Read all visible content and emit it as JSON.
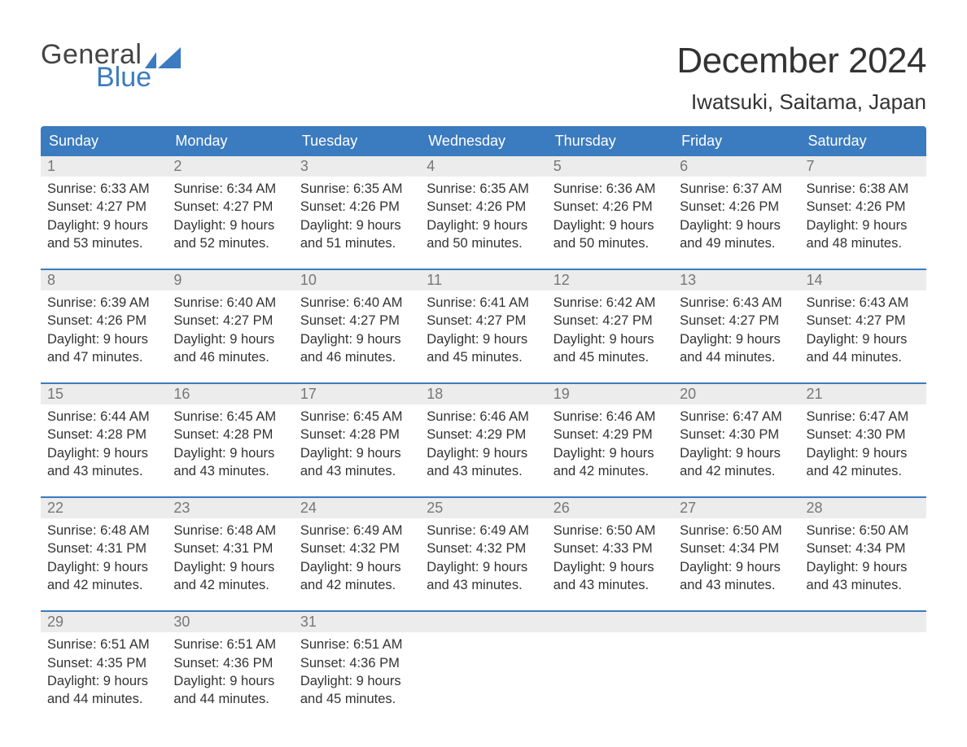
{
  "brand": {
    "word1": "General",
    "word2": "Blue"
  },
  "colors": {
    "brand_blue": "#3b7bbf",
    "header_bg": "#3b7bbf",
    "row_alt": "#ececec",
    "text": "#333333",
    "muted": "#777777"
  },
  "title": "December 2024",
  "location": "Iwatsuki, Saitama, Japan",
  "day_headers": [
    "Sunday",
    "Monday",
    "Tuesday",
    "Wednesday",
    "Thursday",
    "Friday",
    "Saturday"
  ],
  "weeks": [
    [
      {
        "n": "1",
        "sunrise": "Sunrise: 6:33 AM",
        "sunset": "Sunset: 4:27 PM",
        "d1": "Daylight: 9 hours",
        "d2": "and 53 minutes."
      },
      {
        "n": "2",
        "sunrise": "Sunrise: 6:34 AM",
        "sunset": "Sunset: 4:27 PM",
        "d1": "Daylight: 9 hours",
        "d2": "and 52 minutes."
      },
      {
        "n": "3",
        "sunrise": "Sunrise: 6:35 AM",
        "sunset": "Sunset: 4:26 PM",
        "d1": "Daylight: 9 hours",
        "d2": "and 51 minutes."
      },
      {
        "n": "4",
        "sunrise": "Sunrise: 6:35 AM",
        "sunset": "Sunset: 4:26 PM",
        "d1": "Daylight: 9 hours",
        "d2": "and 50 minutes."
      },
      {
        "n": "5",
        "sunrise": "Sunrise: 6:36 AM",
        "sunset": "Sunset: 4:26 PM",
        "d1": "Daylight: 9 hours",
        "d2": "and 50 minutes."
      },
      {
        "n": "6",
        "sunrise": "Sunrise: 6:37 AM",
        "sunset": "Sunset: 4:26 PM",
        "d1": "Daylight: 9 hours",
        "d2": "and 49 minutes."
      },
      {
        "n": "7",
        "sunrise": "Sunrise: 6:38 AM",
        "sunset": "Sunset: 4:26 PM",
        "d1": "Daylight: 9 hours",
        "d2": "and 48 minutes."
      }
    ],
    [
      {
        "n": "8",
        "sunrise": "Sunrise: 6:39 AM",
        "sunset": "Sunset: 4:26 PM",
        "d1": "Daylight: 9 hours",
        "d2": "and 47 minutes."
      },
      {
        "n": "9",
        "sunrise": "Sunrise: 6:40 AM",
        "sunset": "Sunset: 4:27 PM",
        "d1": "Daylight: 9 hours",
        "d2": "and 46 minutes."
      },
      {
        "n": "10",
        "sunrise": "Sunrise: 6:40 AM",
        "sunset": "Sunset: 4:27 PM",
        "d1": "Daylight: 9 hours",
        "d2": "and 46 minutes."
      },
      {
        "n": "11",
        "sunrise": "Sunrise: 6:41 AM",
        "sunset": "Sunset: 4:27 PM",
        "d1": "Daylight: 9 hours",
        "d2": "and 45 minutes."
      },
      {
        "n": "12",
        "sunrise": "Sunrise: 6:42 AM",
        "sunset": "Sunset: 4:27 PM",
        "d1": "Daylight: 9 hours",
        "d2": "and 45 minutes."
      },
      {
        "n": "13",
        "sunrise": "Sunrise: 6:43 AM",
        "sunset": "Sunset: 4:27 PM",
        "d1": "Daylight: 9 hours",
        "d2": "and 44 minutes."
      },
      {
        "n": "14",
        "sunrise": "Sunrise: 6:43 AM",
        "sunset": "Sunset: 4:27 PM",
        "d1": "Daylight: 9 hours",
        "d2": "and 44 minutes."
      }
    ],
    [
      {
        "n": "15",
        "sunrise": "Sunrise: 6:44 AM",
        "sunset": "Sunset: 4:28 PM",
        "d1": "Daylight: 9 hours",
        "d2": "and 43 minutes."
      },
      {
        "n": "16",
        "sunrise": "Sunrise: 6:45 AM",
        "sunset": "Sunset: 4:28 PM",
        "d1": "Daylight: 9 hours",
        "d2": "and 43 minutes."
      },
      {
        "n": "17",
        "sunrise": "Sunrise: 6:45 AM",
        "sunset": "Sunset: 4:28 PM",
        "d1": "Daylight: 9 hours",
        "d2": "and 43 minutes."
      },
      {
        "n": "18",
        "sunrise": "Sunrise: 6:46 AM",
        "sunset": "Sunset: 4:29 PM",
        "d1": "Daylight: 9 hours",
        "d2": "and 43 minutes."
      },
      {
        "n": "19",
        "sunrise": "Sunrise: 6:46 AM",
        "sunset": "Sunset: 4:29 PM",
        "d1": "Daylight: 9 hours",
        "d2": "and 42 minutes."
      },
      {
        "n": "20",
        "sunrise": "Sunrise: 6:47 AM",
        "sunset": "Sunset: 4:30 PM",
        "d1": "Daylight: 9 hours",
        "d2": "and 42 minutes."
      },
      {
        "n": "21",
        "sunrise": "Sunrise: 6:47 AM",
        "sunset": "Sunset: 4:30 PM",
        "d1": "Daylight: 9 hours",
        "d2": "and 42 minutes."
      }
    ],
    [
      {
        "n": "22",
        "sunrise": "Sunrise: 6:48 AM",
        "sunset": "Sunset: 4:31 PM",
        "d1": "Daylight: 9 hours",
        "d2": "and 42 minutes."
      },
      {
        "n": "23",
        "sunrise": "Sunrise: 6:48 AM",
        "sunset": "Sunset: 4:31 PM",
        "d1": "Daylight: 9 hours",
        "d2": "and 42 minutes."
      },
      {
        "n": "24",
        "sunrise": "Sunrise: 6:49 AM",
        "sunset": "Sunset: 4:32 PM",
        "d1": "Daylight: 9 hours",
        "d2": "and 42 minutes."
      },
      {
        "n": "25",
        "sunrise": "Sunrise: 6:49 AM",
        "sunset": "Sunset: 4:32 PM",
        "d1": "Daylight: 9 hours",
        "d2": "and 43 minutes."
      },
      {
        "n": "26",
        "sunrise": "Sunrise: 6:50 AM",
        "sunset": "Sunset: 4:33 PM",
        "d1": "Daylight: 9 hours",
        "d2": "and 43 minutes."
      },
      {
        "n": "27",
        "sunrise": "Sunrise: 6:50 AM",
        "sunset": "Sunset: 4:34 PM",
        "d1": "Daylight: 9 hours",
        "d2": "and 43 minutes."
      },
      {
        "n": "28",
        "sunrise": "Sunrise: 6:50 AM",
        "sunset": "Sunset: 4:34 PM",
        "d1": "Daylight: 9 hours",
        "d2": "and 43 minutes."
      }
    ],
    [
      {
        "n": "29",
        "sunrise": "Sunrise: 6:51 AM",
        "sunset": "Sunset: 4:35 PM",
        "d1": "Daylight: 9 hours",
        "d2": "and 44 minutes."
      },
      {
        "n": "30",
        "sunrise": "Sunrise: 6:51 AM",
        "sunset": "Sunset: 4:36 PM",
        "d1": "Daylight: 9 hours",
        "d2": "and 44 minutes."
      },
      {
        "n": "31",
        "sunrise": "Sunrise: 6:51 AM",
        "sunset": "Sunset: 4:36 PM",
        "d1": "Daylight: 9 hours",
        "d2": "and 45 minutes."
      },
      null,
      null,
      null,
      null
    ]
  ]
}
